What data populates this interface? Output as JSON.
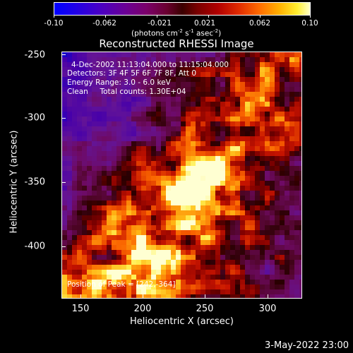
{
  "colorbar": {
    "ticks": [
      "-0.10",
      "-0.062",
      "-0.021",
      "0.021",
      "0.062",
      "0.10"
    ],
    "units_text": "(photons cm",
    "units_exp1": "-2",
    "units_mid": " s",
    "units_exp2": "-1",
    "units_mid2": " asec",
    "units_exp3": "-2",
    "units_end": ")"
  },
  "title": "Reconstructed RHESSI Image",
  "info": {
    "time": "4-Dec-2002 11:13:04.000 to 11:15:04.000",
    "detectors": "Detectors: 3F 4F 5F 6F 7F 8F, Att 0",
    "energy": "Energy Range: 3.0 - 6.0 keV",
    "clean": "Clean     Total counts: 1.30E+04",
    "peak": "Position of Peak = [242,-364]"
  },
  "axes": {
    "x_title": "Heliocentric X (arcsec)",
    "y_title": "Heliocentric Y (arcsec)",
    "x_ticks": [
      "150",
      "200",
      "250",
      "300"
    ],
    "y_ticks": [
      "-250",
      "-300",
      "-350",
      "-400"
    ]
  },
  "datestamp": "3-May-2022 23:00",
  "colors": {
    "background": "#000000",
    "text": "#ffffff"
  }
}
